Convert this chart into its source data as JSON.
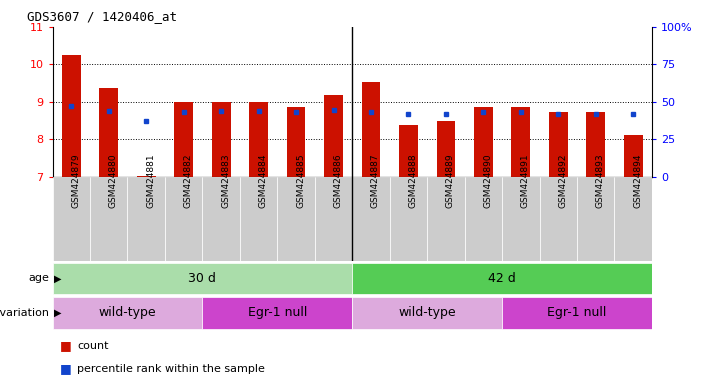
{
  "title": "GDS3607 / 1420406_at",
  "samples": [
    "GSM424879",
    "GSM424880",
    "GSM424881",
    "GSM424882",
    "GSM424883",
    "GSM424884",
    "GSM424885",
    "GSM424886",
    "GSM424887",
    "GSM424888",
    "GSM424889",
    "GSM424890",
    "GSM424891",
    "GSM424892",
    "GSM424893",
    "GSM424894"
  ],
  "bar_heights": [
    10.25,
    9.38,
    7.02,
    9.0,
    9.0,
    9.0,
    8.85,
    9.17,
    9.52,
    8.38,
    8.48,
    8.85,
    8.85,
    8.72,
    8.72,
    8.1
  ],
  "blue_dots": [
    8.88,
    8.75,
    8.48,
    8.72,
    8.75,
    8.75,
    8.72,
    8.78,
    8.72,
    8.68,
    8.68,
    8.72,
    8.72,
    8.68,
    8.68,
    8.68
  ],
  "bar_bottom": 7.0,
  "ylim": [
    7.0,
    11.0
  ],
  "right_yticks": [
    0,
    25,
    50,
    75,
    100
  ],
  "right_yticklabels": [
    "0",
    "25",
    "50",
    "75",
    "100%"
  ],
  "left_yticks": [
    7,
    8,
    9,
    10,
    11
  ],
  "bar_color": "#cc1100",
  "dot_color": "#1144cc",
  "age_groups": [
    {
      "label": "30 d",
      "start": 0,
      "end": 8,
      "color": "#aaddaa"
    },
    {
      "label": "42 d",
      "start": 8,
      "end": 16,
      "color": "#55cc55"
    }
  ],
  "genotype_groups": [
    {
      "label": "wild-type",
      "start": 0,
      "end": 4,
      "color": "#ddaadd"
    },
    {
      "label": "Egr-1 null",
      "start": 4,
      "end": 8,
      "color": "#cc44cc"
    },
    {
      "label": "wild-type",
      "start": 8,
      "end": 12,
      "color": "#ddaadd"
    },
    {
      "label": "Egr-1 null",
      "start": 12,
      "end": 16,
      "color": "#cc44cc"
    }
  ],
  "tick_bg_color": "#cccccc",
  "bar_width": 0.5
}
